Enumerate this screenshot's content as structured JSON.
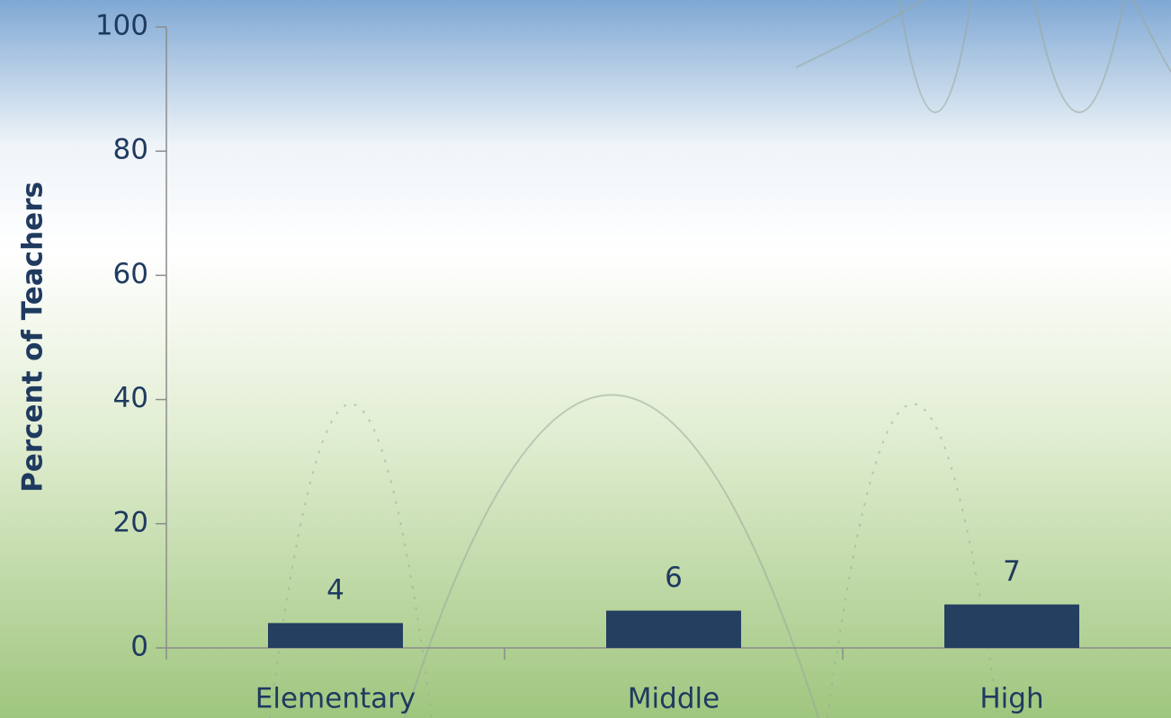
{
  "chart_data": {
    "type": "bar",
    "y_label": "Percent of Teachers",
    "categories": [
      "Elementary",
      "Middle",
      "High"
    ],
    "values": [
      4,
      6,
      7
    ],
    "color": "#243f60",
    "ylim": [
      0,
      100
    ],
    "yticks": [
      0,
      20,
      40,
      60,
      80,
      100
    ],
    "grid": false,
    "data_labels": true
  }
}
